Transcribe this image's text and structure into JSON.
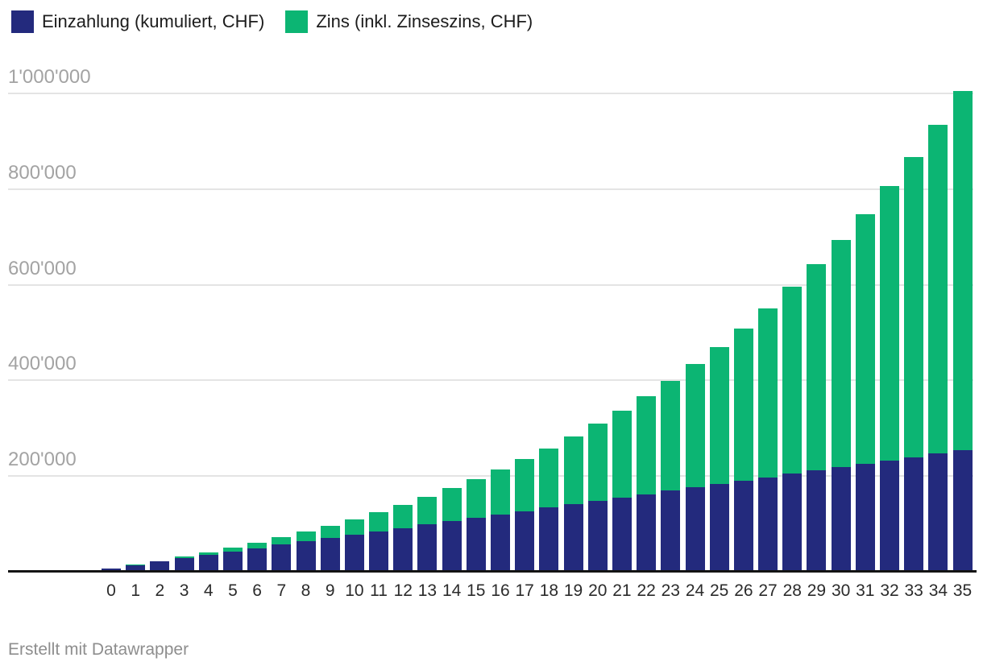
{
  "legend": {
    "items": [
      {
        "id": "einzahlung",
        "label": "Einzahlung (kumuliert, CHF)",
        "color": "#232a7d"
      },
      {
        "id": "zins",
        "label": "Zins (inkl. Zinseszins, CHF)",
        "color": "#0cb573"
      }
    ]
  },
  "footer": {
    "attribution": "Erstellt mit Datawrapper"
  },
  "chart_data": {
    "type": "bar",
    "stacked": true,
    "title": "",
    "xlabel": "",
    "ylabel": "",
    "grid": true,
    "legend_position": "top-left",
    "ylim": [
      0,
      1000000
    ],
    "yticks": [
      {
        "value": 200000,
        "label": "200'000"
      },
      {
        "value": 400000,
        "label": "400'000"
      },
      {
        "value": 600000,
        "label": "600'000"
      },
      {
        "value": 800000,
        "label": "800'000"
      },
      {
        "value": 1000000,
        "label": "1'000'000"
      }
    ],
    "categories": [
      "0",
      "1",
      "2",
      "3",
      "4",
      "5",
      "6",
      "7",
      "8",
      "9",
      "10",
      "11",
      "12",
      "13",
      "14",
      "15",
      "16",
      "17",
      "18",
      "19",
      "20",
      "21",
      "22",
      "23",
      "24",
      "25",
      "26",
      "27",
      "28",
      "29",
      "30",
      "31",
      "32",
      "33",
      "34",
      "35"
    ],
    "series": [
      {
        "name": "Einzahlung (kumuliert, CHF)",
        "color": "#232a7d",
        "values": [
          7056,
          14112,
          21168,
          28224,
          35280,
          42336,
          49392,
          56448,
          63504,
          70560,
          77616,
          84672,
          91728,
          98784,
          105840,
          112896,
          119952,
          127008,
          134064,
          141120,
          148176,
          155232,
          162288,
          169344,
          176400,
          183456,
          190512,
          197568,
          204624,
          211680,
          218736,
          225792,
          232848,
          239904,
          246960,
          254016
        ]
      },
      {
        "name": "Zins (inkl. Zinseszins, CHF)",
        "color": "#0cb573",
        "values": [
          0,
          480,
          1472,
          3012,
          5136,
          7884,
          11299,
          15426,
          20313,
          26013,
          32580,
          40073,
          48556,
          58095,
          68763,
          80636,
          93796,
          108331,
          124334,
          141905,
          161150,
          182185,
          205129,
          230113,
          257276,
          286766,
          318742,
          353371,
          390835,
          431326,
          475050,
          522228,
          573093,
          627897,
          686908,
          750411
        ]
      }
    ]
  }
}
